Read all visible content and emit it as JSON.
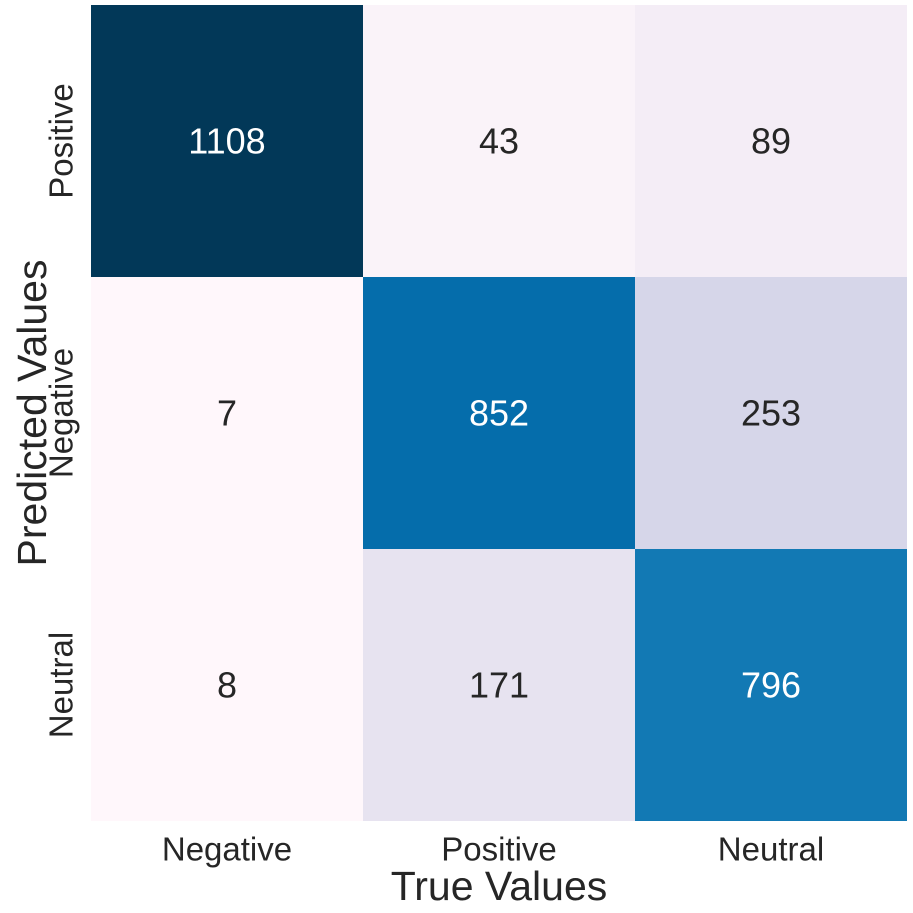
{
  "chart_data": {
    "type": "heatmap",
    "title": "",
    "xlabel": "True Values",
    "ylabel": "Predicted Values",
    "x_categories": [
      "Negative",
      "Positive",
      "Neutral"
    ],
    "y_categories": [
      "Positive",
      "Negative",
      "Neutral"
    ],
    "values": [
      [
        1108,
        43,
        89
      ],
      [
        7,
        852,
        253
      ],
      [
        8,
        171,
        796
      ]
    ],
    "colormap": "PuBu",
    "vmin": 7,
    "vmax": 1108,
    "colorbar": false,
    "annotated": true,
    "colors": {
      "light_text": "#ffffff",
      "dark_text": "#262626",
      "low": "#fff7fb",
      "high": "#023858"
    }
  }
}
